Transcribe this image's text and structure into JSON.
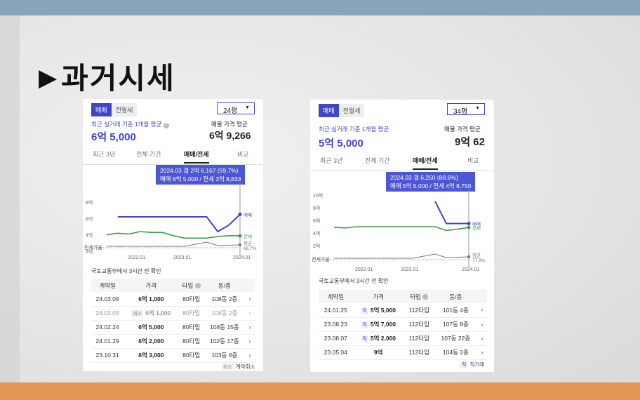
{
  "slide": {
    "title": "과거시세"
  },
  "card1": {
    "tabs": [
      "매매",
      "전월세"
    ],
    "dropdown": "24평",
    "recent_label": "최근 실거래 기준 1개월 평균",
    "recent_value": "6억 5,000",
    "listing_label": "매물 가격 평균",
    "listing_value": "6억 9,266",
    "period_tabs": [
      "최근 3년",
      "전체 기간",
      "매매/전세",
      "비교"
    ],
    "tooltip_line1": "2024.03  갭 2억 6,167 (59.7%)",
    "tooltip_line2": "매매 6억 5,000 / 전세 3억 8,833",
    "y_ticks": [
      "8억",
      "6억",
      "4억",
      "2억"
    ],
    "ratio_label": "전세가율",
    "x_ticks": [
      "2022.01",
      "2023.01",
      "2024.01"
    ],
    "end_labels": [
      "매매",
      "전세",
      "평균",
      "68.7%"
    ],
    "source_note": "국토교통부에서 3시간 전 확인",
    "table_headers": [
      "계약일",
      "가격",
      "타입",
      "동/층"
    ],
    "rows": [
      {
        "date": "24.03.09",
        "tag": "",
        "price": "6억 1,000",
        "type": "80타입",
        "floor": "108동 2층"
      },
      {
        "date": "24.03.09",
        "tag": "취소",
        "price": "6억 1,000",
        "type": "80타입",
        "floor": "108동 2층"
      },
      {
        "date": "24.02.24",
        "tag": "",
        "price": "6억 5,000",
        "type": "80타입",
        "floor": "108동 15층"
      },
      {
        "date": "24.01.29",
        "tag": "",
        "price": "6억 2,000",
        "type": "80타입",
        "floor": "102동 17층"
      },
      {
        "date": "23.10.31",
        "tag": "",
        "price": "6억 3,000",
        "type": "80타입",
        "floor": "103동 8층"
      }
    ],
    "legend_tag": "취소",
    "legend_text": "계약취소"
  },
  "card2": {
    "tabs": [
      "매매",
      "전월세"
    ],
    "dropdown": "34평",
    "recent_label": "최근 실거래 기준 1개월 평균",
    "recent_value": "5억 5,000",
    "listing_label": "매물 가격 평균",
    "listing_value": "9억 62",
    "period_tabs": [
      "최근 3년",
      "전체 기간",
      "매매/전세",
      "비교"
    ],
    "tooltip_line1": "2024.03  갭 6,250 (88.6%)",
    "tooltip_line2": "매매 5억 5,000 / 전세 4억 8,750",
    "y_ticks": [
      "10억",
      "8억",
      "6억",
      "4억",
      "2억"
    ],
    "ratio_label": "전세가율",
    "x_ticks": [
      "2022.01",
      "2023.01",
      "2024.01"
    ],
    "end_labels": [
      "매매",
      "전세",
      "평균",
      "77.8%"
    ],
    "source_note": "국토교통부에서 3시간 전 확인",
    "table_headers": [
      "계약일",
      "가격",
      "타입",
      "동/층"
    ],
    "rows": [
      {
        "date": "24.01.25",
        "tag": "직",
        "price": "5억 5,000",
        "type": "112타입",
        "floor": "101동 4층"
      },
      {
        "date": "23.08.23",
        "tag": "직",
        "price": "5억 7,000",
        "type": "112타입",
        "floor": "107동 8층"
      },
      {
        "date": "23.08.07",
        "tag": "직",
        "price": "5억 2,000",
        "type": "112타입",
        "floor": "107동 22층"
      },
      {
        "date": "23.05.04",
        "tag": "",
        "price": "9억",
        "type": "112타입",
        "floor": "104동 2층"
      }
    ],
    "legend_tag": "직",
    "legend_text": "직거래"
  },
  "colors": {
    "accent": "#3f46c8",
    "sale_line": "#3f46c8",
    "jeonse_line": "#3f9a4e",
    "top_bar": "#86a5bb",
    "bottom_bar": "#e49655"
  },
  "chart_data": [
    {
      "type": "line",
      "title": "",
      "x": [
        "2021.03",
        "2021.06",
        "2021.09",
        "2021.12",
        "2022.03",
        "2022.06",
        "2022.09",
        "2022.12",
        "2023.03",
        "2023.06",
        "2023.09",
        "2023.12",
        "2024.03"
      ],
      "series": [
        {
          "name": "매매",
          "values": [
            null,
            6.2,
            6.2,
            6.2,
            6.2,
            6.2,
            6.2,
            6.2,
            6.2,
            6.2,
            4.4,
            5.2,
            6.5
          ]
        },
        {
          "name": "전세",
          "values": [
            4.0,
            4.2,
            4.1,
            4.4,
            4.3,
            4.3,
            3.9,
            3.6,
            3.6,
            3.6,
            3.8,
            3.9,
            3.88
          ]
        }
      ],
      "y_ticks": [
        "8억",
        "6억",
        "4억",
        "2억"
      ],
      "ylim": [
        2,
        8
      ],
      "ratio_end": "68.7%"
    },
    {
      "type": "line",
      "title": "",
      "x": [
        "2021.03",
        "2021.06",
        "2021.09",
        "2021.12",
        "2022.03",
        "2022.06",
        "2022.09",
        "2022.12",
        "2023.03",
        "2023.06",
        "2023.09",
        "2023.12",
        "2024.03"
      ],
      "series": [
        {
          "name": "매매",
          "values": [
            null,
            null,
            null,
            null,
            null,
            null,
            null,
            null,
            null,
            9.0,
            5.5,
            5.5,
            5.5
          ]
        },
        {
          "name": "전세",
          "values": [
            4.9,
            4.8,
            5.0,
            5.0,
            5.0,
            5.0,
            5.0,
            5.0,
            5.0,
            5.0,
            4.4,
            4.6,
            4.88
          ]
        }
      ],
      "y_ticks": [
        "10억",
        "8억",
        "6억",
        "4억",
        "2억"
      ],
      "ylim": [
        2,
        10
      ],
      "ratio_end": "77.8%"
    }
  ]
}
